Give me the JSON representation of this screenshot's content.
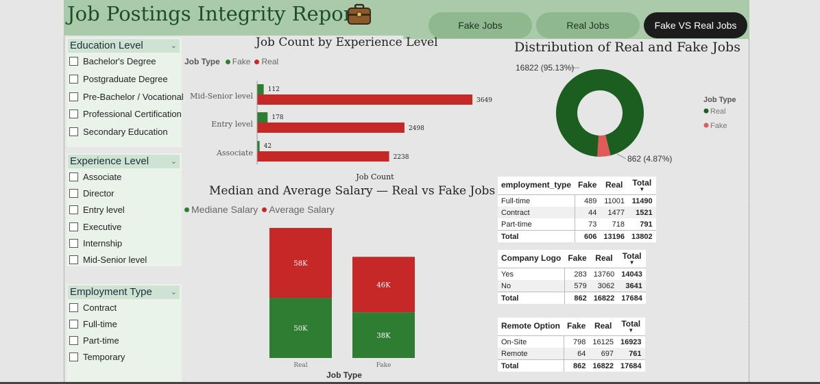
{
  "header": {
    "title": "Job Postings Integrity Report"
  },
  "nav": {
    "fake_jobs": "Fake Jobs",
    "real_jobs": "Real Jobs",
    "fake_vs_real": "Fake VS Real Jobs"
  },
  "slicers": {
    "education": {
      "label": "Education Level",
      "items": [
        "Bachelor's Degree",
        "Postgraduate Degree",
        "Pre-Bachelor / Vocational",
        "Professional Certification",
        "Secondary Education"
      ]
    },
    "experience": {
      "label": "Experience Level",
      "items": [
        "Associate",
        "Director",
        "Entry level",
        "Executive",
        "Internship",
        "Mid-Senior level"
      ]
    },
    "employment": {
      "label": "Employment Type",
      "items": [
        "Contract",
        "Full-time",
        "Part-time",
        "Temporary"
      ]
    }
  },
  "colors": {
    "fake": "#2e7d32",
    "real": "#c62828",
    "donut_real": "#1b5e20",
    "donut_fake": "#e05a5a"
  },
  "chart_data": [
    {
      "type": "bar",
      "orientation": "horizontal",
      "title": "Job Count by Experience Level",
      "legend_title": "Job Type",
      "legend_position": "top-left",
      "categories": [
        "Mid-Senior level",
        "Entry level",
        "Associate"
      ],
      "series": [
        {
          "name": "Fake",
          "values": [
            112,
            178,
            42
          ]
        },
        {
          "name": "Real",
          "values": [
            3649,
            2498,
            2238
          ]
        }
      ],
      "xlabel": "Job Count",
      "xlim": [
        0,
        3649
      ]
    },
    {
      "type": "bar",
      "orientation": "vertical",
      "stacked": true,
      "title": "Median and Average Salary — Real vs Fake Jobs",
      "legend_position": "top-left",
      "categories": [
        "Real",
        "Fake"
      ],
      "series": [
        {
          "name": "Mediane Salary",
          "values": [
            50,
            38
          ],
          "labels": [
            "50K",
            "38K"
          ]
        },
        {
          "name": "Average Salary",
          "values": [
            58,
            46
          ],
          "labels": [
            "58K",
            "46K"
          ]
        }
      ],
      "xlabel": "Job Type",
      "ylim": [
        0,
        108
      ]
    },
    {
      "type": "pie",
      "donut": true,
      "title": "Distribution of Real and Fake Jobs",
      "legend_title": "Job Type",
      "legend_position": "right",
      "slices": [
        {
          "name": "Real",
          "value": 16822,
          "label": "16822 (95.13%)"
        },
        {
          "name": "Fake",
          "value": 862,
          "label": "862 (4.87%)"
        }
      ]
    },
    {
      "type": "table",
      "columns": [
        "employment_type",
        "Fake",
        "Real",
        "Total"
      ],
      "rows": [
        [
          "Full-time",
          "489",
          "11001",
          "11490"
        ],
        [
          "Contract",
          "44",
          "1477",
          "1521"
        ],
        [
          "Part-time",
          "73",
          "718",
          "791"
        ]
      ],
      "total": [
        "Total",
        "606",
        "13196",
        "13802"
      ]
    },
    {
      "type": "table",
      "columns": [
        "Company Logo",
        "Fake",
        "Real",
        "Total"
      ],
      "rows": [
        [
          "Yes",
          "283",
          "13760",
          "14043"
        ],
        [
          "No",
          "579",
          "3062",
          "3641"
        ]
      ],
      "total": [
        "Total",
        "862",
        "16822",
        "17684"
      ]
    },
    {
      "type": "table",
      "columns": [
        "Remote Option",
        "Fake",
        "Real",
        "Total"
      ],
      "rows": [
        [
          "On-Site",
          "798",
          "16125",
          "16923"
        ],
        [
          "Remote",
          "64",
          "697",
          "761"
        ]
      ],
      "total": [
        "Total",
        "862",
        "16822",
        "17684"
      ]
    }
  ]
}
